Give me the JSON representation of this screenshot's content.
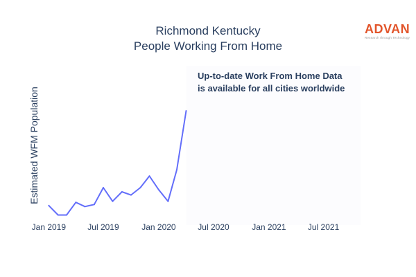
{
  "title_lines": [
    "Richmond Kentucky",
    "People Working From Home"
  ],
  "logo": {
    "name": "ADVAN",
    "tagline": "Research through Technology"
  },
  "annotation_lines": [
    "Up-to-date Work From Home Data",
    "is available for all cities worldwide"
  ],
  "colors": {
    "line": "#636efa",
    "shaded_region": "#fcfcfe",
    "logo": "#e2552b",
    "text": "#2a3f5f"
  },
  "chart_data": {
    "type": "line",
    "title": "Richmond Kentucky People Working From Home",
    "xlabel": "",
    "ylabel": "Estimated WFM Population",
    "x_ticks": [
      "Jan 2019",
      "Jul 2019",
      "Jan 2020",
      "Jul 2020",
      "Jan 2021",
      "Jul 2021"
    ],
    "xlim": [
      "2018-12-22",
      "2021-11-01"
    ],
    "ylim": [
      0,
      100
    ],
    "y_tick_labels_shown": false,
    "grid": false,
    "series": [
      {
        "x": [
          "2019-01-01",
          "2019-02-01",
          "2019-03-01",
          "2019-04-01",
          "2019-05-01",
          "2019-06-01",
          "2019-07-01",
          "2019-08-01",
          "2019-09-01",
          "2019-10-01",
          "2019-11-01",
          "2019-12-01",
          "2020-01-01",
          "2020-02-01",
          "2020-03-01",
          "2020-04-01"
        ],
        "y": [
          10,
          1,
          1,
          13,
          9,
          11,
          27,
          14,
          23,
          20,
          27,
          38,
          25,
          14,
          44,
          100
        ]
      }
    ],
    "shaded_x_range": [
      "2020-04-01",
      "2021-11-01"
    ]
  }
}
